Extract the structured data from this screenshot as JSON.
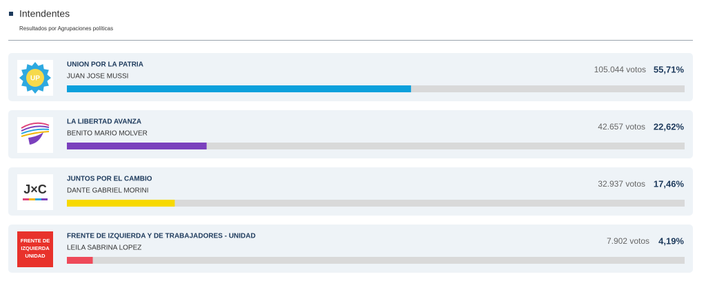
{
  "header": {
    "title": "Intendentes",
    "subtitle": "Resultados por Agrupaciones políticas"
  },
  "xlim": [
    0,
    100
  ],
  "results": [
    {
      "party": "UNION POR LA PATRIA",
      "candidate": "JUAN JOSE MUSSI",
      "votes": {
        "value": 105044,
        "label": "105.044 votos"
      },
      "percent": {
        "value": 55.71,
        "label": "55,71%"
      },
      "color": "#0ba0dc",
      "logo_text": [
        "UP"
      ]
    },
    {
      "party": "LA LIBERTAD AVANZA",
      "candidate": "BENITO MARIO MOLVER",
      "votes": {
        "value": 42657,
        "label": "42.657 votos"
      },
      "percent": {
        "value": 22.62,
        "label": "22,62%"
      },
      "color": "#7b40bd",
      "logo_text": []
    },
    {
      "party": "JUNTOS POR EL CAMBIO",
      "candidate": "DANTE GABRIEL MORINI",
      "votes": {
        "value": 32937,
        "label": "32.937 votos"
      },
      "percent": {
        "value": 17.46,
        "label": "17,46%"
      },
      "color": "#f7d900",
      "logo_text": [
        "J×C"
      ]
    },
    {
      "party": "FRENTE DE IZQUIERDA Y DE TRABAJADORES - UNIDAD",
      "candidate": "LEILA SABRINA LOPEZ",
      "votes": {
        "value": 7902,
        "label": "7.902 votos"
      },
      "percent": {
        "value": 4.19,
        "label": "4,19%"
      },
      "color": "#ee4a5a",
      "logo_text": [
        "FRENTE DE",
        "IZQUIERDA",
        "UNIDAD"
      ]
    }
  ]
}
